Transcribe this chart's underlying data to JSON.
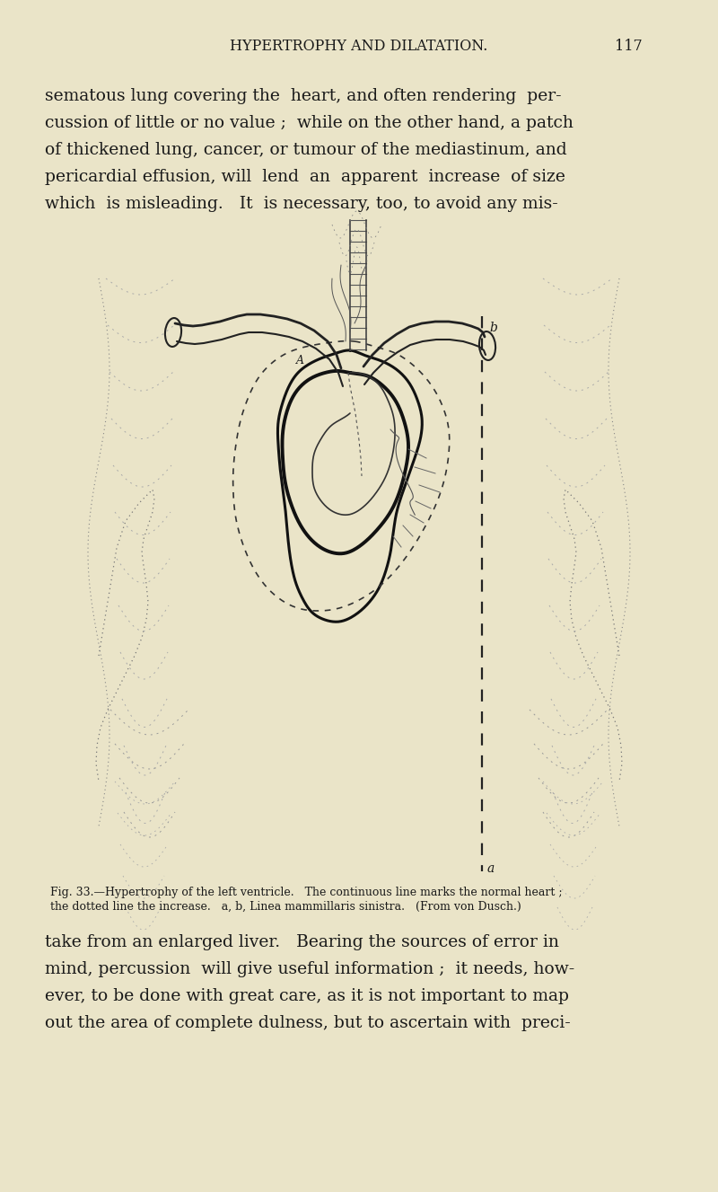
{
  "background_color": "#EAE4C8",
  "page_width": 8.0,
  "page_height": 13.27,
  "dpi": 100,
  "header_text": "HYPERTROPHY AND DILATATION.",
  "page_number": "117",
  "text_color": "#1a1a1a",
  "top_text_lines": [
    "sematous lung covering the  heart, and often rendering  per-",
    "cussion of little or no value ;  while on the other hand, a patch",
    "of thickened lung, cancer, or tumour of the mediastinum, and",
    "pericardial effusion, will  lend  an  apparent  increase  of size",
    "which  is misleading.   It  is necessary, too, to avoid any mis-"
  ],
  "caption_line1": "Fig. 33.—Hypertrophy of the left ventricle.   The continuous line marks the normal heart ;",
  "caption_line2": "the dotted line the increase.   a, b, Linea mammillaris sinistra.   (From von Dusch.)",
  "bottom_text_lines": [
    "take from an enlarged liver.   Bearing the sources of error in",
    "mind, percussion  will give useful information ;  it needs, how-",
    "ever, to be done with great care, as it is not important to map",
    "out the area of complete dulness, but to ascertain with  preci-"
  ],
  "text_fontsize": 13.5,
  "header_fontsize": 11.5,
  "caption_fontsize": 9.0
}
